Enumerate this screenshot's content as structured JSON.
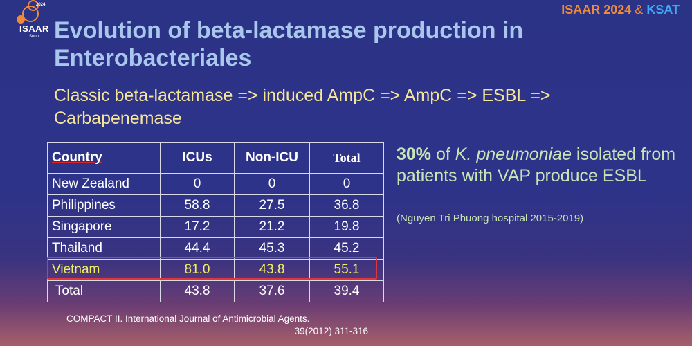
{
  "header": {
    "logo_year": "2024",
    "logo_name": "ISAAR",
    "logo_city": "Seoul",
    "conf_isaar": "ISAAR 2024",
    "conf_amp": "&",
    "conf_ksat": "KSAT"
  },
  "slide": {
    "title": "Evolution of beta-lactamase production in Enterobacteriales",
    "subtitle": "Classic beta-lactamase => induced AmpC => AmpC => ESBL => Carbapenemase"
  },
  "table": {
    "headers": [
      "Country",
      "ICUs",
      "Non-ICU",
      "Total"
    ],
    "rows": [
      [
        "New Zealand",
        "0",
        "0",
        "0"
      ],
      [
        "Philippines",
        "58.8",
        "27.5",
        "36.8"
      ],
      [
        "Singapore",
        "17.2",
        "21.2",
        "19.8"
      ],
      [
        "Thailand",
        "44.4",
        "45.3",
        "45.2"
      ],
      [
        "Vietnam",
        "81.0",
        "43.8",
        "55.1"
      ],
      [
        " Total",
        "43.8",
        "37.6",
        "39.4"
      ]
    ],
    "highlight_color": "#e0353a",
    "highlight_text_color": "#f0f060"
  },
  "note": {
    "pct": "30%",
    "text1": " of ",
    "organism": "K. pneumoniae",
    "text2": " isolated from patients with VAP produce ESBL",
    "source": "(Nguyen Tri Phuong hospital 2015-2019)"
  },
  "reference": {
    "line1": "COMPACT II. International Journal of Antimicrobial Agents.",
    "line2": "39(2012) 311-316"
  }
}
